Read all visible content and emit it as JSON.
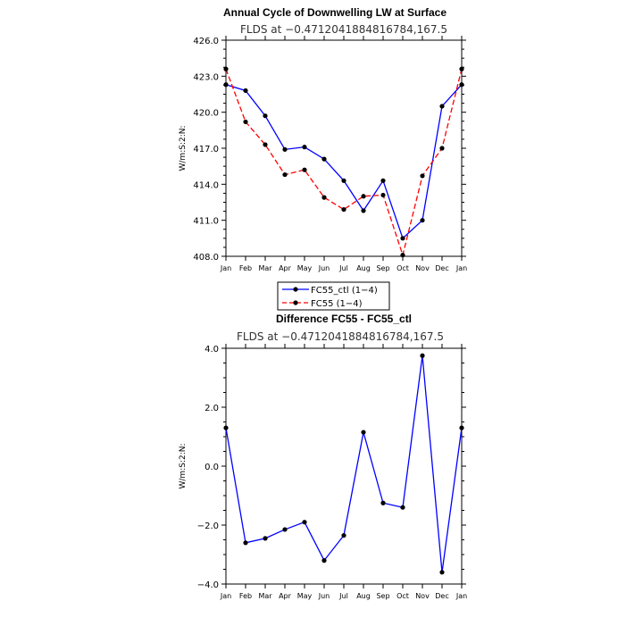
{
  "chart_data": [
    {
      "type": "line",
      "title": "Annual Cycle of Downwelling LW at Surface",
      "subtitle": "FLDS at −0.4712041884816784,167.5",
      "ylabel": "W/m:S:2:N:",
      "ylim": [
        408.0,
        426.0
      ],
      "yticks": [
        "408.0",
        "411.0",
        "414.0",
        "417.0",
        "420.0",
        "423.0",
        "426.0"
      ],
      "ytick_values": [
        408,
        411,
        414,
        417,
        420,
        423,
        426
      ],
      "categories": [
        "Jan",
        "Feb",
        "Mar",
        "Apr",
        "May",
        "Jun",
        "Jul",
        "Aug",
        "Sep",
        "Oct",
        "Nov",
        "Dec",
        "Jan"
      ],
      "series": [
        {
          "name": "FC55_ctl (1−4)",
          "color": "#0000ff",
          "dash": "solid",
          "values": [
            422.3,
            421.8,
            419.7,
            416.9,
            417.1,
            416.1,
            414.3,
            411.8,
            414.3,
            409.5,
            411.0,
            420.5,
            422.3
          ]
        },
        {
          "name": "FC55 (1−4)",
          "color": "#ff0000",
          "dash": "dashed",
          "values": [
            423.6,
            419.2,
            417.3,
            414.8,
            415.2,
            412.9,
            411.9,
            413.0,
            413.1,
            408.1,
            414.7,
            417.0,
            423.6
          ]
        }
      ],
      "legend": "bottom"
    },
    {
      "type": "line",
      "title": "Difference FC55 - FC55_ctl",
      "subtitle": "FLDS at −0.4712041884816784,167.5",
      "ylabel": "W/m:S:2:N:",
      "ylim": [
        -4.0,
        4.0
      ],
      "yticks": [
        "−4.0",
        "−2.0",
        "0.0",
        "2.0",
        "4.0"
      ],
      "ytick_values": [
        -4,
        -2,
        0,
        2,
        4
      ],
      "categories": [
        "Jan",
        "Feb",
        "Mar",
        "Apr",
        "May",
        "Jun",
        "Jul",
        "Aug",
        "Sep",
        "Oct",
        "Nov",
        "Dec",
        "Jan"
      ],
      "series": [
        {
          "color": "#0000ff",
          "dash": "solid",
          "values": [
            1.3,
            -2.6,
            -2.45,
            -2.15,
            -1.9,
            -3.2,
            -2.35,
            1.15,
            -1.25,
            -1.4,
            3.75,
            -3.6,
            1.3
          ]
        }
      ]
    }
  ]
}
